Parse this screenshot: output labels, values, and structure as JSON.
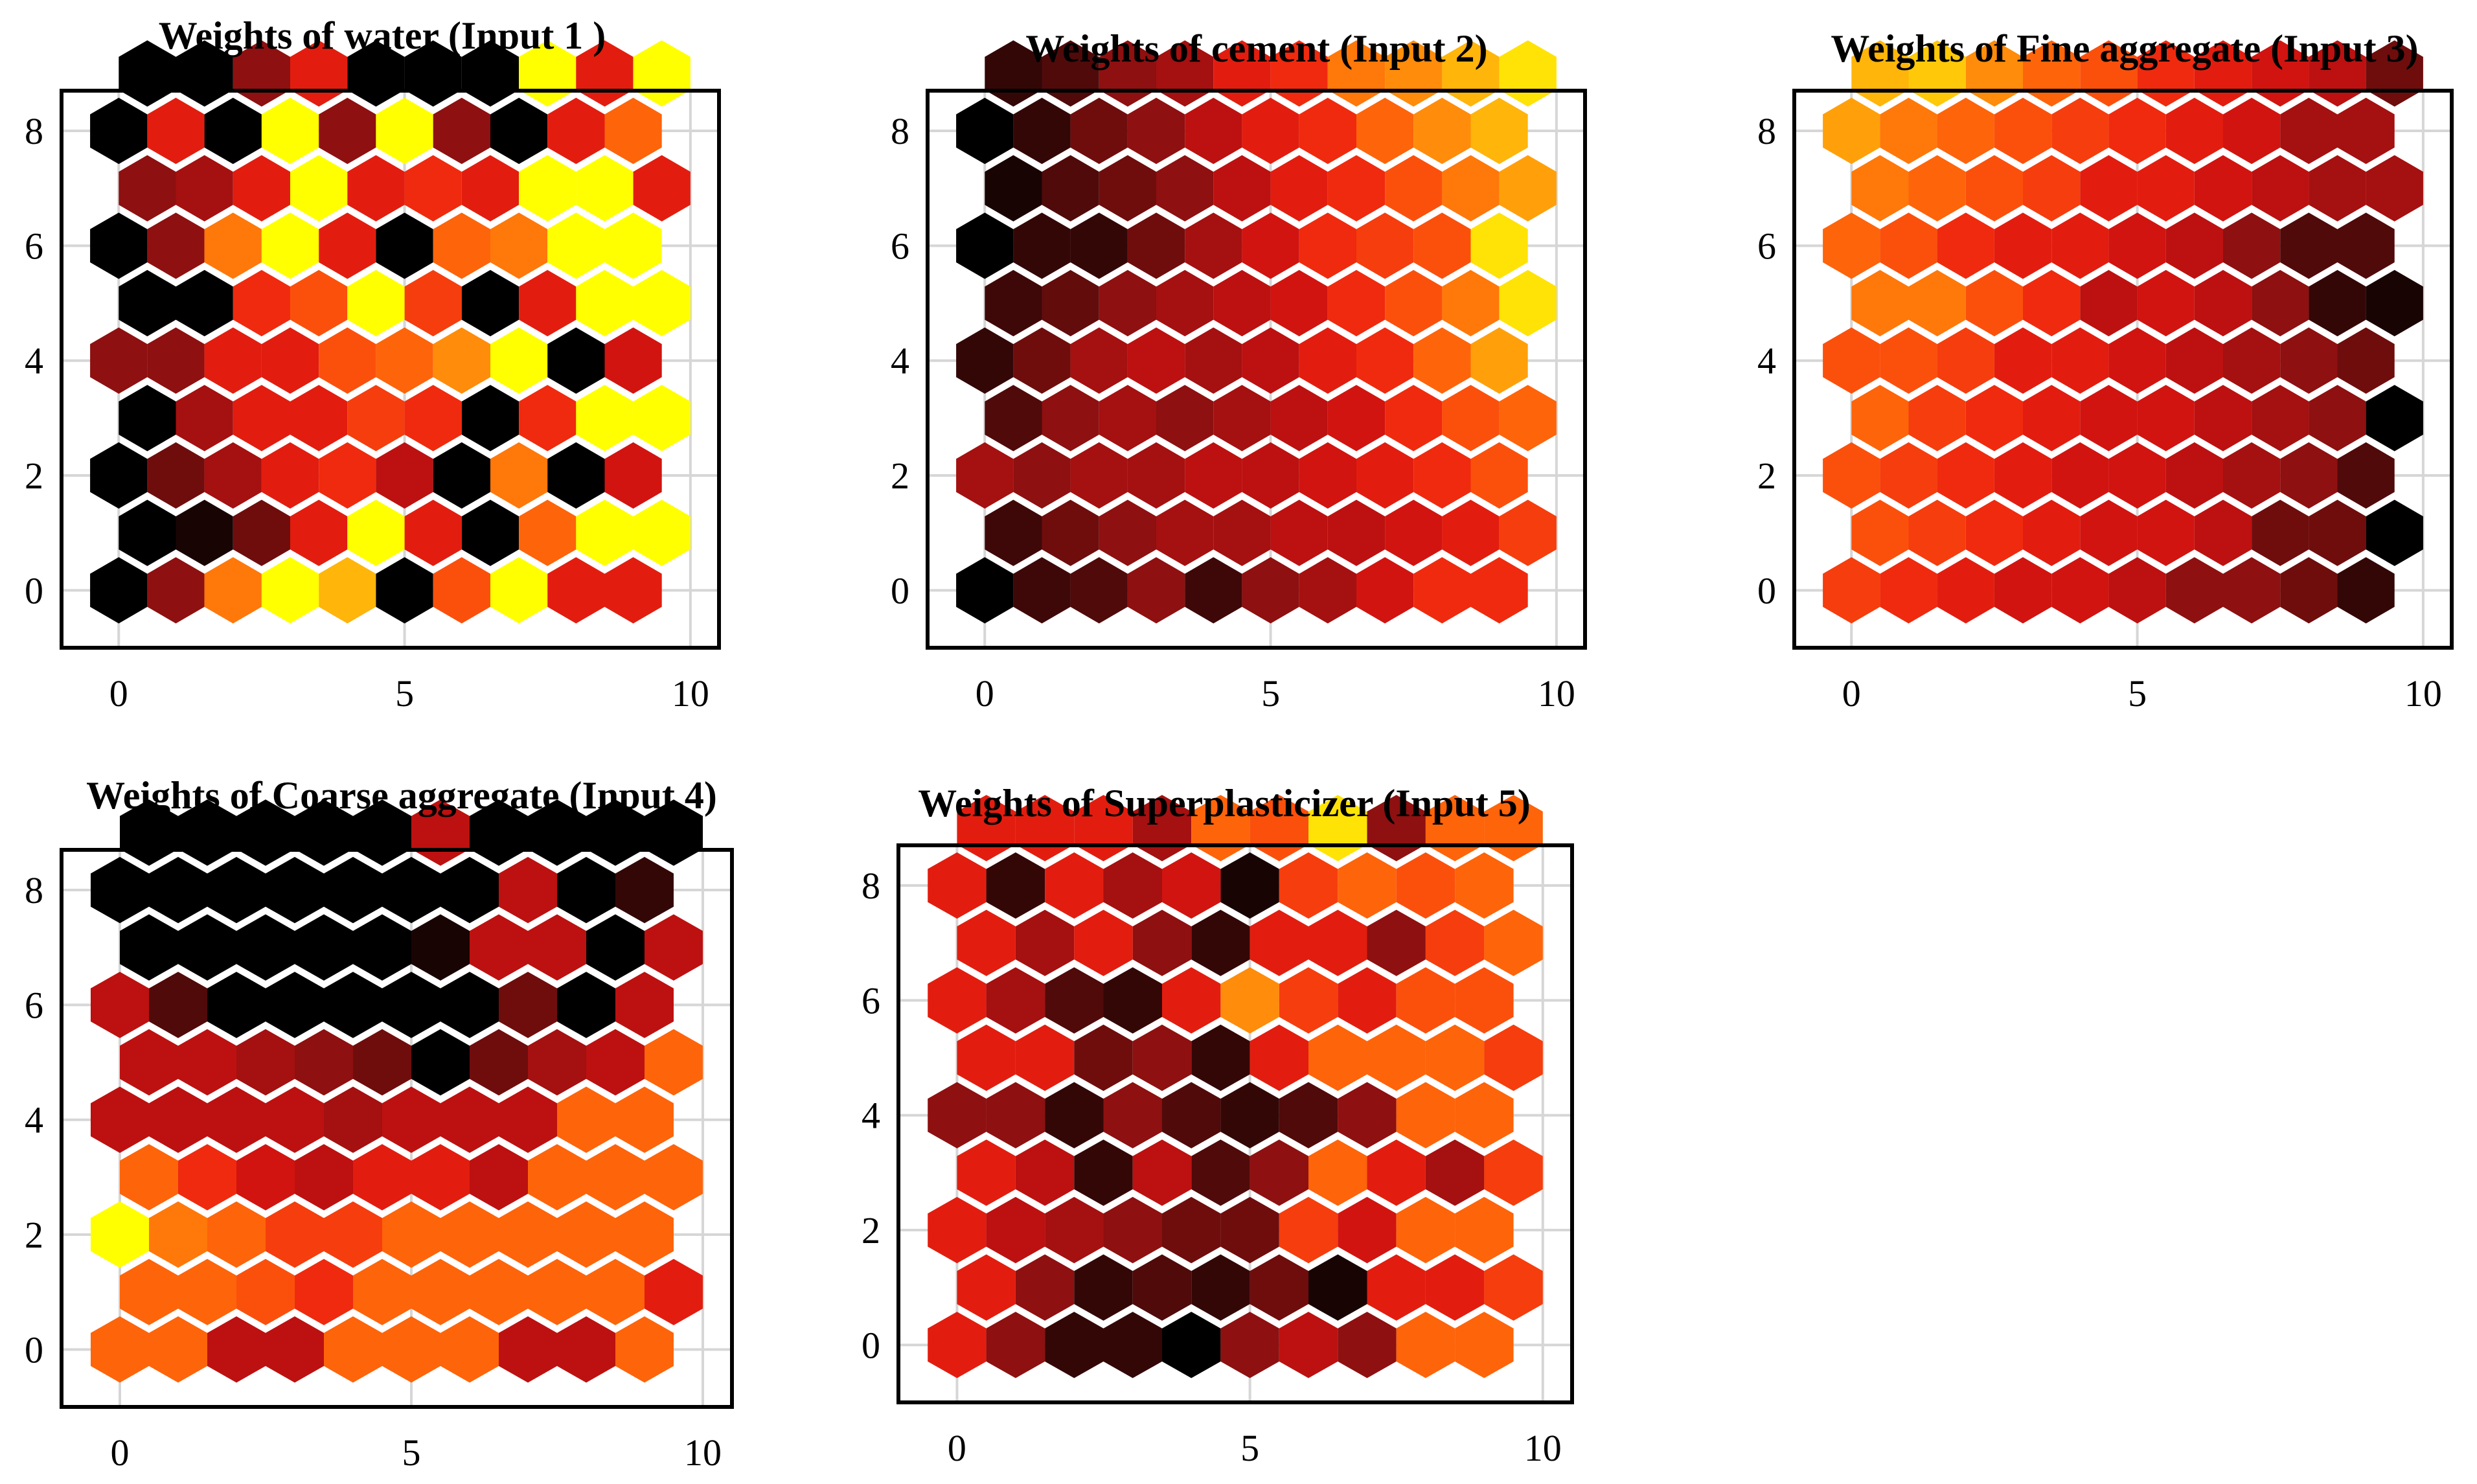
{
  "figure": {
    "description_free": true
  },
  "colors": {
    "colormap": [
      "#000000",
      "#2a0606",
      "#5a0b0b",
      "#8e1010",
      "#b51010",
      "#d81510",
      "#f02a0e",
      "#fa4a0c",
      "#ff6a0a",
      "#ff8c0a",
      "#ffae0a",
      "#ffd00a",
      "#ffff00"
    ]
  },
  "chart_data": [
    {
      "type": "heatmap",
      "grid": "hexagonal 10x9",
      "title": "Weights of water (Input 1 )",
      "xlim": [
        -1,
        10.5
      ],
      "ylim": [
        -1,
        8.7
      ],
      "xticks": [
        "0",
        "5",
        "10"
      ],
      "yticks": [
        "0",
        "2",
        "4",
        "6",
        "8"
      ],
      "values": [
        [
          0.0,
          0.25,
          0.7,
          1.0,
          0.85,
          0.0,
          0.6,
          1.0,
          0.45,
          0.45
        ],
        [
          0.0,
          0.05,
          0.2,
          0.45,
          1.0,
          0.45,
          0.0,
          0.65,
          1.0,
          1.0
        ],
        [
          0.0,
          0.2,
          0.3,
          0.45,
          0.5,
          0.35,
          0.0,
          0.7,
          0.0,
          0.4
        ],
        [
          0.0,
          0.3,
          0.45,
          0.45,
          0.55,
          0.5,
          0.0,
          0.5,
          1.0,
          1.0
        ],
        [
          0.25,
          0.25,
          0.45,
          0.45,
          0.6,
          0.65,
          0.75,
          1.0,
          0.0,
          0.4
        ],
        [
          0.0,
          0.0,
          0.5,
          0.6,
          1.0,
          0.55,
          0.0,
          0.45,
          1.0,
          1.0
        ],
        [
          0.0,
          0.25,
          0.7,
          1.0,
          0.45,
          0.0,
          0.65,
          0.7,
          1.0,
          1.0
        ],
        [
          0.25,
          0.3,
          0.45,
          1.0,
          0.45,
          0.5,
          0.45,
          1.0,
          1.0,
          0.45
        ],
        [
          0.0,
          0.45,
          0.0,
          1.0,
          0.25,
          1.0,
          0.25,
          0.0,
          0.45,
          0.65
        ],
        [
          0.0,
          0.0,
          0.25,
          0.45,
          0.0,
          0.0,
          0.0,
          1.0,
          0.45,
          1.0
        ]
      ]
    },
    {
      "type": "heatmap",
      "grid": "hexagonal 10x9",
      "title": "Weights of cement (Input 2)",
      "xlim": [
        -1,
        10.5
      ],
      "ylim": [
        -1,
        8.7
      ],
      "xticks": [
        "0",
        "5",
        "10"
      ],
      "yticks": [
        "0",
        "2",
        "4",
        "6",
        "8"
      ],
      "values": [
        [
          0.0,
          0.12,
          0.15,
          0.25,
          0.12,
          0.25,
          0.3,
          0.4,
          0.5,
          0.5
        ],
        [
          0.12,
          0.2,
          0.25,
          0.3,
          0.3,
          0.35,
          0.35,
          0.4,
          0.45,
          0.55
        ],
        [
          0.3,
          0.25,
          0.3,
          0.3,
          0.35,
          0.35,
          0.4,
          0.45,
          0.5,
          0.6
        ],
        [
          0.15,
          0.25,
          0.3,
          0.25,
          0.3,
          0.35,
          0.4,
          0.5,
          0.6,
          0.65
        ],
        [
          0.1,
          0.2,
          0.3,
          0.35,
          0.3,
          0.35,
          0.45,
          0.5,
          0.65,
          0.8
        ],
        [
          0.12,
          0.18,
          0.25,
          0.3,
          0.35,
          0.4,
          0.5,
          0.6,
          0.7,
          0.95
        ],
        [
          0.0,
          0.1,
          0.1,
          0.2,
          0.3,
          0.4,
          0.5,
          0.55,
          0.6,
          0.95
        ],
        [
          0.05,
          0.15,
          0.2,
          0.25,
          0.35,
          0.45,
          0.5,
          0.6,
          0.7,
          0.8
        ],
        [
          0.0,
          0.1,
          0.2,
          0.25,
          0.35,
          0.45,
          0.5,
          0.65,
          0.75,
          0.85
        ],
        [
          0.1,
          0.15,
          0.25,
          0.3,
          0.45,
          0.5,
          0.7,
          0.75,
          0.85,
          0.95
        ]
      ]
    },
    {
      "type": "heatmap",
      "grid": "hexagonal 10x9",
      "title": "Weights of Fine aggregate (Input 3)",
      "xlim": [
        -1,
        10.5
      ],
      "ylim": [
        -1,
        8.7
      ],
      "xticks": [
        "0",
        "5",
        "10"
      ],
      "yticks": [
        "0",
        "2",
        "4",
        "6",
        "8"
      ],
      "values": [
        [
          0.55,
          0.5,
          0.45,
          0.4,
          0.4,
          0.35,
          0.25,
          0.25,
          0.2,
          0.1
        ],
        [
          0.6,
          0.55,
          0.5,
          0.45,
          0.4,
          0.4,
          0.35,
          0.2,
          0.2,
          0.0
        ],
        [
          0.6,
          0.55,
          0.5,
          0.45,
          0.4,
          0.4,
          0.35,
          0.3,
          0.25,
          0.15
        ],
        [
          0.65,
          0.55,
          0.5,
          0.45,
          0.4,
          0.4,
          0.35,
          0.3,
          0.25,
          0.0
        ],
        [
          0.6,
          0.6,
          0.55,
          0.45,
          0.45,
          0.4,
          0.35,
          0.3,
          0.25,
          0.2
        ],
        [
          0.7,
          0.7,
          0.6,
          0.5,
          0.35,
          0.4,
          0.35,
          0.25,
          0.1,
          0.05
        ],
        [
          0.65,
          0.6,
          0.5,
          0.45,
          0.45,
          0.4,
          0.35,
          0.25,
          0.15,
          0.15
        ],
        [
          0.7,
          0.65,
          0.6,
          0.55,
          0.45,
          0.45,
          0.4,
          0.35,
          0.3,
          0.3
        ],
        [
          0.8,
          0.7,
          0.65,
          0.6,
          0.55,
          0.5,
          0.45,
          0.4,
          0.3,
          0.3
        ],
        [
          0.85,
          0.9,
          0.75,
          0.65,
          0.6,
          0.5,
          0.45,
          0.4,
          0.35,
          0.2
        ]
      ]
    },
    {
      "type": "heatmap",
      "grid": "hexagonal 10x9",
      "title": "Weights of Coarse aggregate (Input 4)",
      "xlim": [
        -1,
        10.5
      ],
      "ylim": [
        -1,
        8.7
      ],
      "xticks": [
        "0",
        "5",
        "10"
      ],
      "yticks": [
        "0",
        "2",
        "4",
        "6",
        "8"
      ],
      "values": [
        [
          0.65,
          0.65,
          0.35,
          0.35,
          0.65,
          0.65,
          0.65,
          0.35,
          0.35,
          0.65
        ],
        [
          0.65,
          0.65,
          0.6,
          0.5,
          0.65,
          0.65,
          0.65,
          0.65,
          0.65,
          0.45
        ],
        [
          1.0,
          0.7,
          0.65,
          0.55,
          0.55,
          0.65,
          0.65,
          0.65,
          0.65,
          0.65
        ],
        [
          0.65,
          0.5,
          0.4,
          0.35,
          0.45,
          0.45,
          0.35,
          0.65,
          0.65,
          0.65
        ],
        [
          0.35,
          0.35,
          0.35,
          0.35,
          0.3,
          0.35,
          0.35,
          0.35,
          0.65,
          0.65
        ],
        [
          0.35,
          0.35,
          0.3,
          0.25,
          0.2,
          0.0,
          0.2,
          0.3,
          0.35,
          0.65
        ],
        [
          0.35,
          0.15,
          0.0,
          0.0,
          0.0,
          0.0,
          0.0,
          0.2,
          0.0,
          0.35
        ],
        [
          0.0,
          0.0,
          0.0,
          0.0,
          0.0,
          0.05,
          0.35,
          0.35,
          0.0,
          0.35
        ],
        [
          0.0,
          0.0,
          0.0,
          0.0,
          0.0,
          0.0,
          0.0,
          0.35,
          0.0,
          0.1
        ],
        [
          0.0,
          0.0,
          0.0,
          0.0,
          0.0,
          0.35,
          0.0,
          0.0,
          0.0,
          0.0
        ]
      ]
    },
    {
      "type": "heatmap",
      "grid": "hexagonal 10x9",
      "title": "Weights of Superplasticizer (Input 5)",
      "xlim": [
        -1,
        10.5
      ],
      "ylim": [
        -1,
        8.7
      ],
      "xticks": [
        "0",
        "5",
        "10"
      ],
      "yticks": [
        "0",
        "2",
        "4",
        "6",
        "8"
      ],
      "values": [
        [
          0.45,
          0.25,
          0.1,
          0.1,
          0.0,
          0.25,
          0.35,
          0.25,
          0.65,
          0.65
        ],
        [
          0.45,
          0.25,
          0.1,
          0.15,
          0.1,
          0.2,
          0.05,
          0.45,
          0.45,
          0.55
        ],
        [
          0.45,
          0.35,
          0.3,
          0.25,
          0.2,
          0.2,
          0.55,
          0.4,
          0.65,
          0.65
        ],
        [
          0.45,
          0.35,
          0.1,
          0.35,
          0.15,
          0.25,
          0.65,
          0.45,
          0.3,
          0.55
        ],
        [
          0.25,
          0.25,
          0.1,
          0.25,
          0.15,
          0.1,
          0.15,
          0.25,
          0.65,
          0.65
        ],
        [
          0.45,
          0.45,
          0.2,
          0.25,
          0.1,
          0.45,
          0.65,
          0.65,
          0.65,
          0.55
        ],
        [
          0.45,
          0.3,
          0.15,
          0.1,
          0.45,
          0.75,
          0.55,
          0.45,
          0.6,
          0.6
        ],
        [
          0.45,
          0.3,
          0.45,
          0.25,
          0.1,
          0.45,
          0.45,
          0.25,
          0.55,
          0.65
        ],
        [
          0.45,
          0.1,
          0.45,
          0.3,
          0.4,
          0.05,
          0.55,
          0.65,
          0.6,
          0.65
        ],
        [
          0.45,
          0.45,
          0.45,
          0.3,
          0.65,
          0.6,
          0.95,
          0.25,
          0.65,
          0.65
        ]
      ]
    }
  ]
}
